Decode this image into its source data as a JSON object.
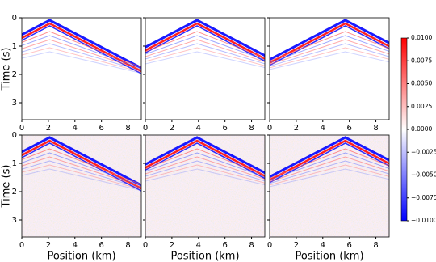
{
  "chart_data": {
    "type": "heatmap",
    "rows": 2,
    "cols": 3,
    "xlabel": "Position (km)",
    "ylabel": "Time (s)",
    "xlim": [
      0,
      9
    ],
    "ylim": [
      3.6,
      0
    ],
    "xticks": [
      0,
      2,
      4,
      6,
      8
    ],
    "yticks": [
      0,
      1,
      2,
      3
    ],
    "colorbar": {
      "lim": [
        -0.01,
        0.01
      ],
      "ticks": [
        {
          "value": -0.01,
          "label": "−0.0100"
        },
        {
          "value": -0.0075,
          "label": "−0.0075"
        },
        {
          "value": -0.005,
          "label": "−0.0050"
        },
        {
          "value": -0.0025,
          "label": "−0.0025"
        },
        {
          "value": 0,
          "label": "0.0000"
        },
        {
          "value": 0.0025,
          "label": "0.0025"
        },
        {
          "value": 0.005,
          "label": "0.0050"
        },
        {
          "value": 0.0075,
          "label": "0.0075"
        },
        {
          "value": 0.01,
          "label": "0.0100"
        }
      ],
      "colors": [
        "#0000ff",
        "#ffffff",
        "#ff0000"
      ]
    }
  }
}
